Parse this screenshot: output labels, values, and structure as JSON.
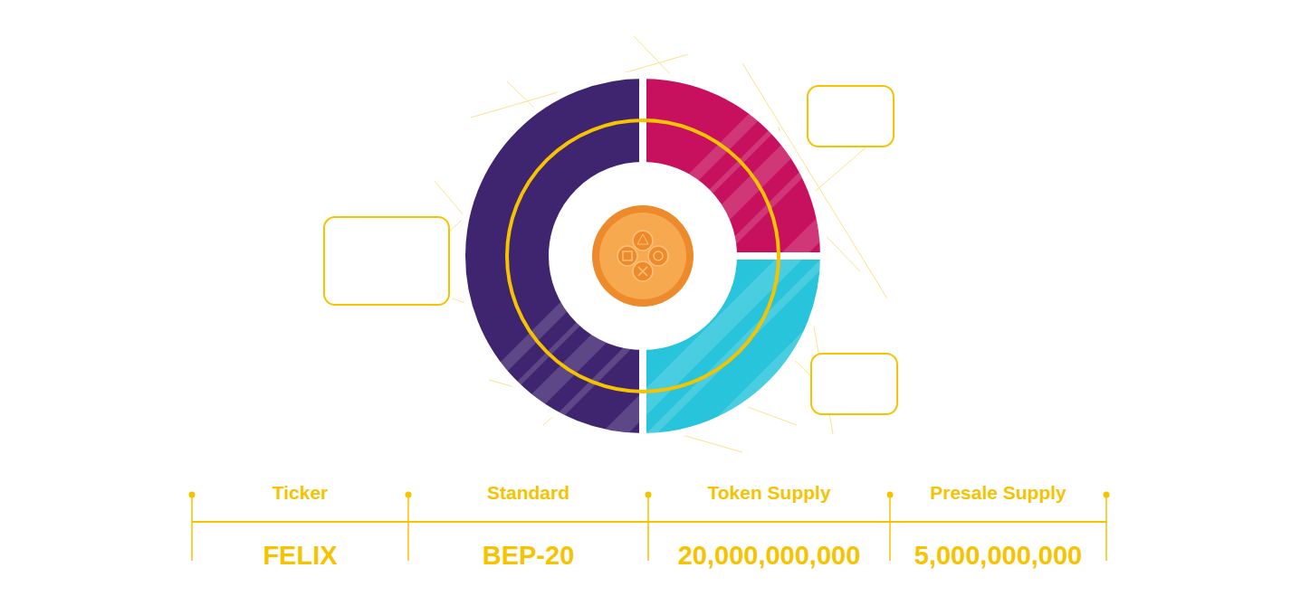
{
  "chart_data": {
    "type": "pie",
    "categories": [
      null,
      null,
      null
    ],
    "values": [
      25,
      25,
      50
    ],
    "colors": [
      "#c8115e",
      "#27c4dc",
      "#3f2470"
    ]
  },
  "token_info": {
    "columns": [
      {
        "header": "Ticker",
        "value": "FELIX"
      },
      {
        "header": "Standard",
        "value": "BEP-20"
      },
      {
        "header": "Token Supply",
        "value": "20,000,000,000"
      },
      {
        "header": "Presale Supply",
        "value": "5,000,000,000"
      }
    ]
  }
}
